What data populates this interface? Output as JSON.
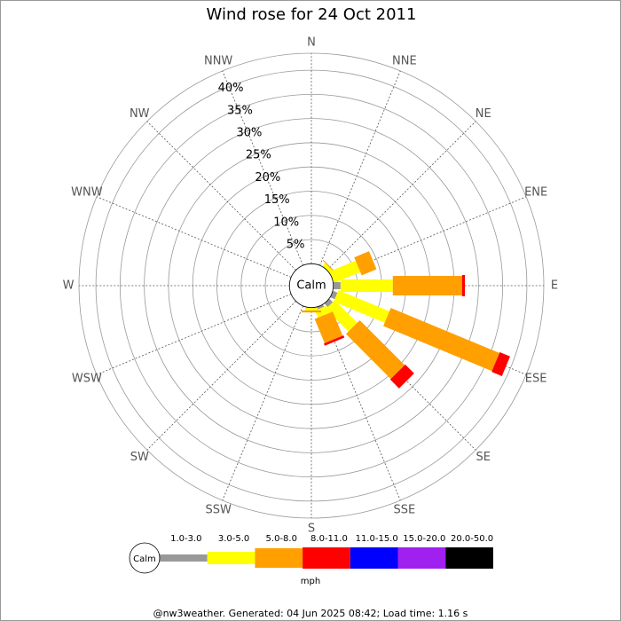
{
  "chart_data": {
    "type": "wind_rose",
    "title": "Wind rose for 24 Oct 2011",
    "directions": [
      "N",
      "NNE",
      "NE",
      "ENE",
      "E",
      "ESE",
      "SE",
      "SSE",
      "S",
      "SSW",
      "SW",
      "WSW",
      "W",
      "WNW",
      "NW",
      "NNW"
    ],
    "rlim": [
      0,
      43.5
    ],
    "rticks": [
      {
        "value": 5,
        "label": "5%"
      },
      {
        "value": 10,
        "label": "10%"
      },
      {
        "value": 15,
        "label": "15%"
      },
      {
        "value": 20,
        "label": "20%"
      },
      {
        "value": 25,
        "label": "25%"
      },
      {
        "value": 30,
        "label": "30%"
      },
      {
        "value": 35,
        "label": "35%"
      },
      {
        "value": 40,
        "label": "40%"
      }
    ],
    "calm_label": "Calm",
    "unit": "mph",
    "series": [
      {
        "name": "1.0-3.0",
        "color": "#999999",
        "values": [
          0,
          0,
          0,
          0,
          1.5,
          1,
          1,
          0.5,
          0,
          0,
          0,
          0,
          0,
          0,
          0,
          0
        ]
      },
      {
        "name": "3.0-5.0",
        "color": "#ffff00",
        "values": [
          0,
          0,
          0.8,
          5.9,
          10.8,
          11.4,
          6.6,
          1.6,
          0.6,
          0,
          0,
          0,
          0,
          0,
          0,
          0
        ]
      },
      {
        "name": "5.0-8.0",
        "color": "#ff9f00",
        "values": [
          0,
          0,
          0.2,
          3.3,
          14.3,
          24.3,
          13.1,
          5.4,
          0.4,
          0,
          0,
          0,
          0,
          0,
          0,
          0
        ]
      },
      {
        "name": "8.0-11.0",
        "color": "#ff0000",
        "values": [
          0,
          0,
          0,
          0,
          0.6,
          2.3,
          2.6,
          0.5,
          0,
          0,
          0,
          0,
          0,
          0,
          0,
          0
        ]
      },
      {
        "name": "11.0-15.0",
        "color": "#0000ff",
        "values": [
          0,
          0,
          0,
          0,
          0,
          0,
          0,
          0,
          0,
          0,
          0,
          0,
          0,
          0,
          0,
          0
        ]
      },
      {
        "name": "15.0-20.0",
        "color": "#a020f0",
        "values": [
          0,
          0,
          0,
          0,
          0,
          0,
          0,
          0,
          0,
          0,
          0,
          0,
          0,
          0,
          0,
          0
        ]
      },
      {
        "name": "20.0-50.0",
        "color": "#000000",
        "values": [
          0,
          0,
          0,
          0,
          0,
          0,
          0,
          0,
          0,
          0,
          0,
          0,
          0,
          0,
          0,
          0
        ]
      }
    ],
    "footer": "@nw3weather. Generated: 04 Jun 2025 08:42; Load time: 1.16 s"
  }
}
